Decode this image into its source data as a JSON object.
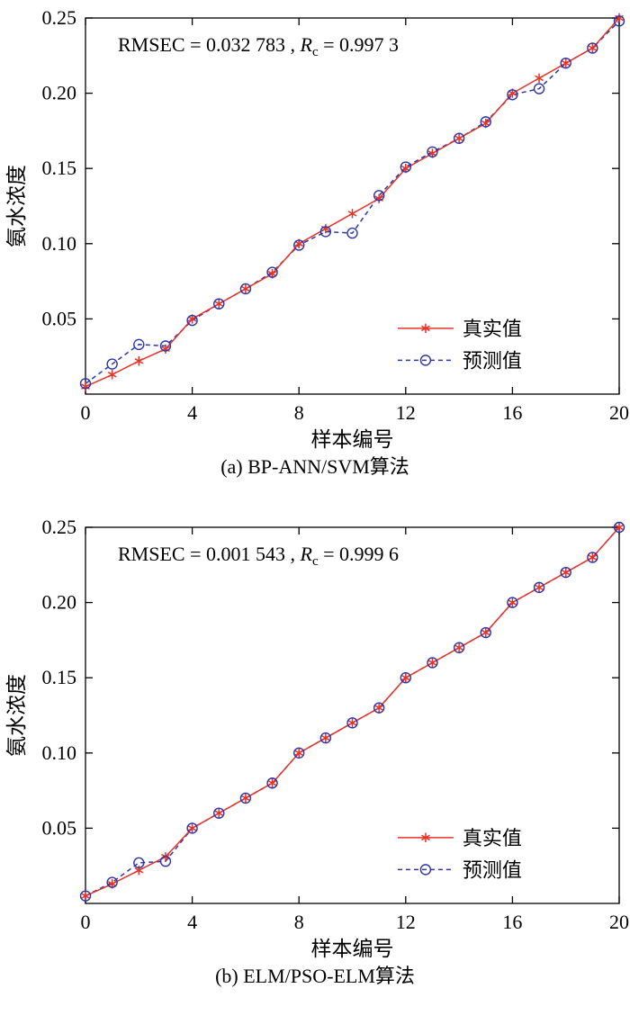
{
  "figure": {
    "background": "#ffffff"
  },
  "colors": {
    "true_series": "#e63329",
    "pred_series": "#2d35a7",
    "axis": "#000000"
  },
  "chart_data": [
    {
      "type": "line",
      "title": "(a) BP-ANN/SVM算法",
      "xlabel": "样本编号",
      "ylabel": "氨水浓度",
      "xlim": [
        0,
        20
      ],
      "ylim": [
        0,
        0.25
      ],
      "xticks": [
        0,
        4,
        8,
        12,
        16,
        20
      ],
      "yticks": [
        0.05,
        0.1,
        0.15,
        0.2,
        0.25
      ],
      "grid": false,
      "legend_position": "bottom-right",
      "x": [
        0,
        1,
        2,
        3,
        4,
        5,
        6,
        7,
        8,
        9,
        10,
        11,
        12,
        13,
        14,
        15,
        16,
        17,
        18,
        19,
        20
      ],
      "series": [
        {
          "name": "真实值",
          "color": "#e63329",
          "marker": "asterisk",
          "line": "solid",
          "values": [
            0.005,
            0.013,
            0.022,
            0.03,
            0.05,
            0.06,
            0.07,
            0.08,
            0.1,
            0.11,
            0.12,
            0.13,
            0.15,
            0.16,
            0.17,
            0.18,
            0.2,
            0.21,
            0.22,
            0.23,
            0.25
          ]
        },
        {
          "name": "预测值",
          "color": "#2d35a7",
          "marker": "circle",
          "line": "dashed",
          "values": [
            0.007,
            0.02,
            0.033,
            0.032,
            0.049,
            0.06,
            0.07,
            0.081,
            0.099,
            0.108,
            0.107,
            0.132,
            0.151,
            0.161,
            0.17,
            0.181,
            0.199,
            0.203,
            0.22,
            0.23,
            0.248
          ]
        }
      ],
      "annotation": [
        {
          "text": "RMSEC = 0.032 783 , ",
          "style": "normal"
        },
        {
          "text": "R",
          "style": "italic"
        },
        {
          "text": "c",
          "style": "sub"
        },
        {
          "text": " = 0.997 3",
          "style": "normal-up"
        }
      ]
    },
    {
      "type": "line",
      "title": "(b) ELM/PSO-ELM算法",
      "xlabel": "样本编号",
      "ylabel": "氨水浓度",
      "xlim": [
        0,
        20
      ],
      "ylim": [
        0,
        0.25
      ],
      "xticks": [
        0,
        4,
        8,
        12,
        16,
        20
      ],
      "yticks": [
        0.05,
        0.1,
        0.15,
        0.2,
        0.25
      ],
      "grid": false,
      "legend_position": "bottom-right",
      "x": [
        0,
        1,
        2,
        3,
        4,
        5,
        6,
        7,
        8,
        9,
        10,
        11,
        12,
        13,
        14,
        15,
        16,
        17,
        18,
        19,
        20
      ],
      "series": [
        {
          "name": "真实值",
          "color": "#e63329",
          "marker": "asterisk",
          "line": "solid",
          "values": [
            0.005,
            0.013,
            0.022,
            0.031,
            0.05,
            0.06,
            0.07,
            0.08,
            0.1,
            0.11,
            0.12,
            0.13,
            0.15,
            0.16,
            0.17,
            0.18,
            0.2,
            0.21,
            0.22,
            0.23,
            0.25
          ]
        },
        {
          "name": "预测值",
          "color": "#2d35a7",
          "marker": "circle",
          "line": "dashed",
          "values": [
            0.005,
            0.014,
            0.027,
            0.028,
            0.05,
            0.06,
            0.07,
            0.08,
            0.1,
            0.11,
            0.12,
            0.13,
            0.15,
            0.16,
            0.17,
            0.18,
            0.2,
            0.21,
            0.22,
            0.23,
            0.25
          ]
        }
      ],
      "annotation": [
        {
          "text": "RMSEC = 0.001 543 , ",
          "style": "normal"
        },
        {
          "text": "R",
          "style": "italic"
        },
        {
          "text": "c",
          "style": "sub"
        },
        {
          "text": " = 0.999 6",
          "style": "normal-up"
        }
      ]
    }
  ]
}
